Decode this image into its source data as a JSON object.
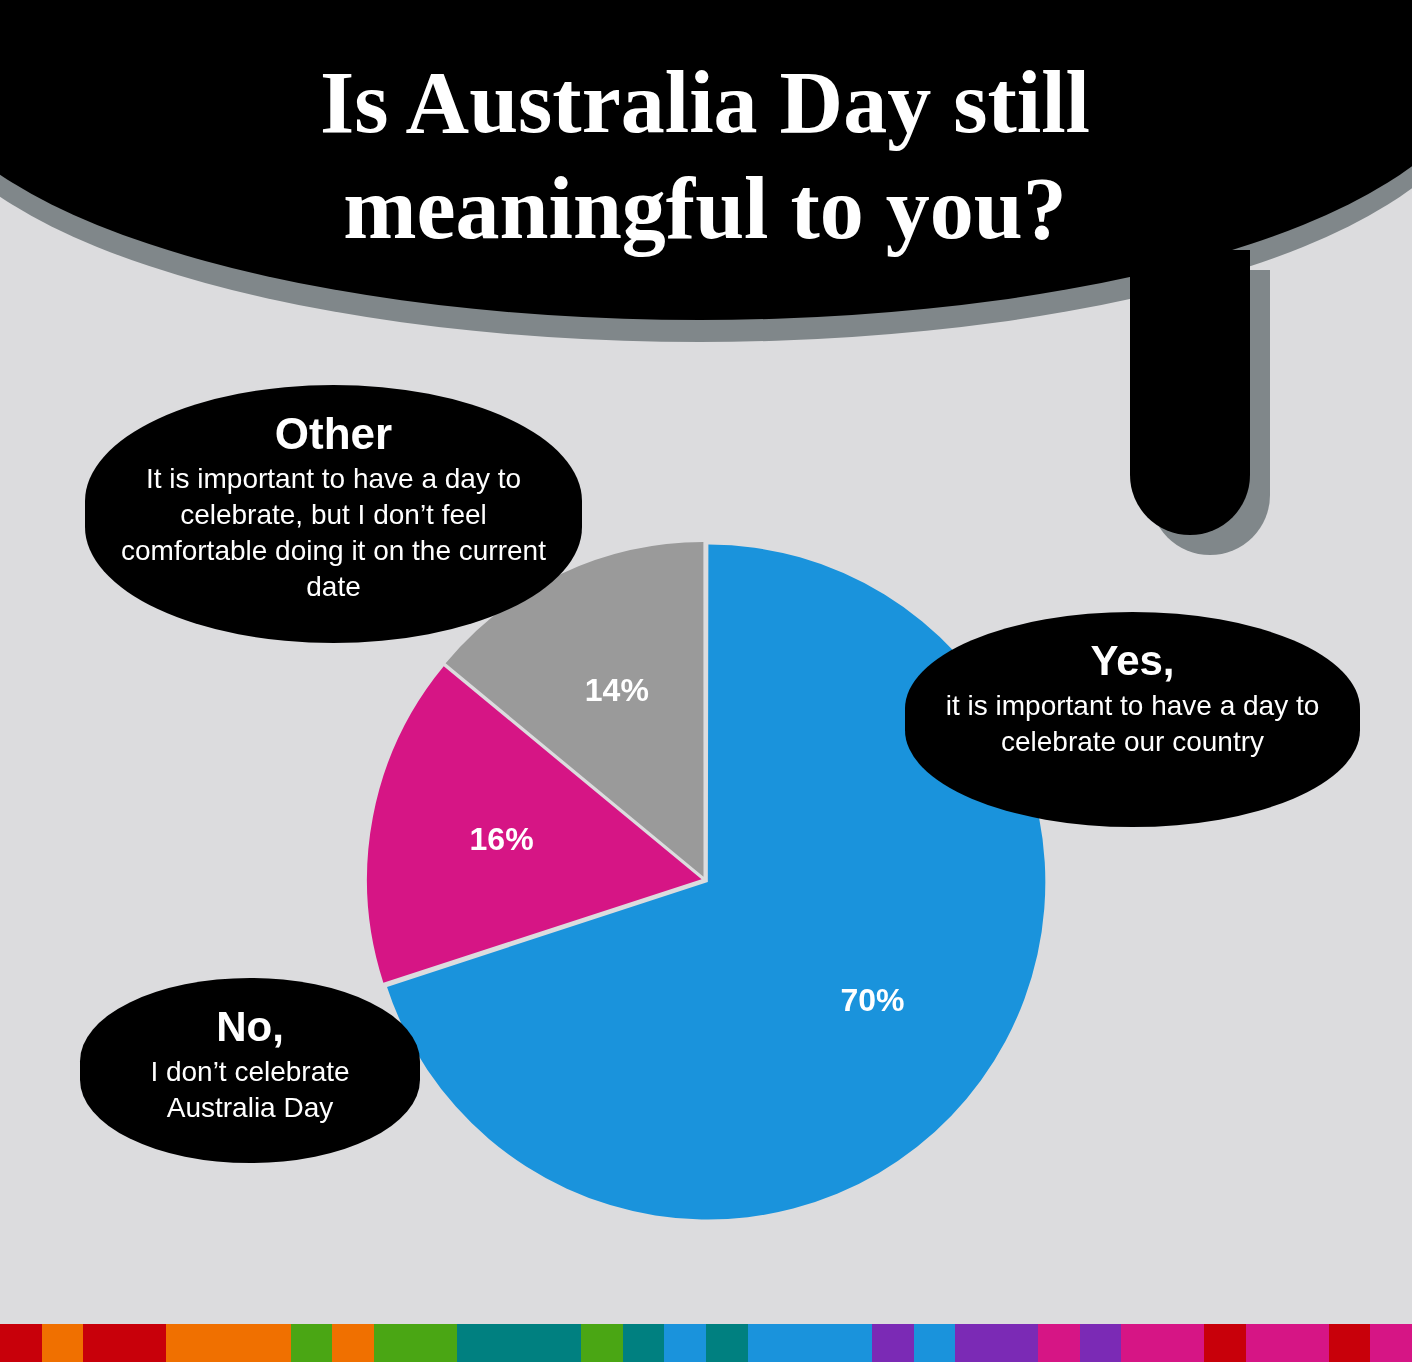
{
  "chart_data": {
    "type": "pie",
    "title": "Is Australia Day still meaningful to you?",
    "categories": [
      "Yes, it is important to have a day to celebrate our country",
      "No, I don’t celebrate Australia Day",
      "Other It is important to have a day to celebrate, but I don’t feel comfortable doing it on the current date"
    ],
    "values": [
      70,
      16,
      14
    ],
    "colors": [
      "#1a93dc",
      "#d61585",
      "#9a9a9a"
    ],
    "value_labels": [
      "70%",
      "16%",
      "14%"
    ],
    "legend": false
  }
}
